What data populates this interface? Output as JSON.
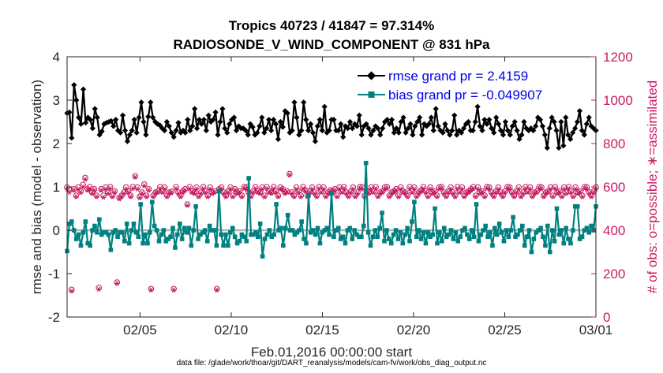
{
  "chart_data": {
    "type": "line",
    "title": "Tropics 40723 / 41847 = 97.314%",
    "subtitle": "RADIOSONDE_V_WIND_COMPONENT @ 831 hPa",
    "xlabel": "Feb.01,2016 00:00:00 start",
    "ylabel": "rmse and bias (model - observation)",
    "ylabel_right": "# of obs: o=possible; ∗=assimilated",
    "footnote": "data file: /glade/work/thoar/git/DART_reanalysis/models/cam-fv/work/obs_diag_output.nc",
    "xlim": [
      1,
      30
    ],
    "ylim": [
      -2,
      4
    ],
    "ylim_right": [
      0,
      1200
    ],
    "x_ticks": [
      {
        "value": 5,
        "label": "02/05"
      },
      {
        "value": 10,
        "label": "02/10"
      },
      {
        "value": 15,
        "label": "02/15"
      },
      {
        "value": 20,
        "label": "02/20"
      },
      {
        "value": 25,
        "label": "02/25"
      },
      {
        "value": 30,
        "label": "03/01"
      }
    ],
    "y_ticks": [
      "-2",
      "-1",
      "0",
      "1",
      "2",
      "3",
      "4"
    ],
    "y_ticks_right": [
      "0",
      "200",
      "400",
      "600",
      "800",
      "1000",
      "1200"
    ],
    "grid": false,
    "legend_position": "top-right",
    "colors": {
      "rmse": "#000000",
      "bias": "#008080",
      "obs": "#c2185b",
      "zero_line": "#b3b3b3",
      "right_axis": "#cc1a66",
      "legend_text": "#0000ee"
    },
    "series": [
      {
        "name": "rmse grand pr = 2.4159",
        "color": "#000000",
        "marker": "diamond",
        "values": [
          2.7,
          2.72,
          2.13,
          3.35,
          3.0,
          2.6,
          2.45,
          3.25,
          2.48,
          2.6,
          2.55,
          2.35,
          2.8,
          2.6,
          2.2,
          2.28,
          2.45,
          2.48,
          2.5,
          2.52,
          2.4,
          2.55,
          2.3,
          2.25,
          2.65,
          2.3,
          2.05,
          2.2,
          2.3,
          2.55,
          2.25,
          2.6,
          2.95,
          2.5,
          2.2,
          2.62,
          2.95,
          2.6,
          2.5,
          2.45,
          2.42,
          2.35,
          2.3,
          2.5,
          2.4,
          2.25,
          2.15,
          2.3,
          2.48,
          2.25,
          2.3,
          2.25,
          2.55,
          2.3,
          2.4,
          2.8,
          2.35,
          2.55,
          2.45,
          2.55,
          2.3,
          2.65,
          2.5,
          2.55,
          2.72,
          2.2,
          2.5,
          2.8,
          2.35,
          2.25,
          2.45,
          2.55,
          2.6,
          2.3,
          2.4,
          2.35,
          2.35,
          2.3,
          2.2,
          2.45,
          2.38,
          2.2,
          2.25,
          2.4,
          2.6,
          2.25,
          2.35,
          2.55,
          2.3,
          2.55,
          2.45,
          2.1,
          2.5,
          2.38,
          2.75,
          2.7,
          2.25,
          2.3,
          2.95,
          2.6,
          2.2,
          2.3,
          2.95,
          2.55,
          2.3,
          2.45,
          2.25,
          2.05,
          2.4,
          2.55,
          2.3,
          2.85,
          2.25,
          2.3,
          2.55,
          2.55,
          2.3,
          2.3,
          2.45,
          2.15,
          2.4,
          2.35,
          2.5,
          2.35,
          2.45,
          2.4,
          2.65,
          2.2,
          2.4,
          2.45,
          2.35,
          2.2,
          2.3,
          2.4,
          2.35,
          2.2,
          2.35,
          2.5,
          2.55,
          2.45,
          2.55,
          2.25,
          2.35,
          2.25,
          2.5,
          2.6,
          2.25,
          2.35,
          2.45,
          2.2,
          2.4,
          2.5,
          2.6,
          2.2,
          2.45,
          2.4,
          2.45,
          2.6,
          2.3,
          2.8,
          2.4,
          2.3,
          2.25,
          2.45,
          2.3,
          2.2,
          2.3,
          2.65,
          2.2,
          2.3,
          2.25,
          2.35,
          2.45,
          2.5,
          2.3,
          2.3,
          2.5,
          2.85,
          2.4,
          2.3,
          2.55,
          2.45,
          2.55,
          2.35,
          2.25,
          2.6,
          2.45,
          2.3,
          2.2,
          2.5,
          2.3,
          2.2,
          2.4,
          2.5,
          2.3,
          2.1,
          2.2,
          2.5,
          2.35,
          2.3,
          2.35,
          2.3,
          2.4,
          2.6,
          2.55,
          2.4,
          2.2,
          1.9,
          2.35,
          2.6,
          2.5,
          2.3,
          1.9,
          2.5,
          1.95,
          2.6,
          2.2,
          2.1,
          2.25,
          2.35,
          2.5,
          2.75,
          2.3,
          2.2,
          2.45,
          2.6,
          2.4,
          2.35,
          2.3
        ]
      },
      {
        "name": "bias grand pr = -0.049907",
        "color": "#008080",
        "marker": "square",
        "values": [
          -0.48,
          0.15,
          0.2,
          0.0,
          -0.2,
          -0.1,
          -0.35,
          -0.05,
          0.2,
          -0.3,
          -0.35,
          0.0,
          0.1,
          -0.05,
          0.25,
          -0.1,
          -0.05,
          -0.05,
          -0.1,
          -0.45,
          -0.05,
          0.0,
          -0.15,
          -0.05,
          -0.05,
          -0.25,
          0.15,
          -0.3,
          0.0,
          0.15,
          -0.05,
          -0.15,
          0.6,
          -0.3,
          -0.1,
          -0.3,
          -0.05,
          0.65,
          0.1,
          0.0,
          -0.25,
          -0.1,
          0.0,
          -0.25,
          -0.2,
          -0.15,
          0.05,
          -0.4,
          -0.1,
          0.15,
          -0.2,
          0.05,
          -0.05,
          0.05,
          -0.35,
          0.0,
          0.55,
          -0.2,
          -0.1,
          -0.05,
          0.0,
          -0.25,
          0.1,
          0.0,
          0.0,
          -0.35,
          0.9,
          -0.1,
          -0.35,
          -0.1,
          -0.35,
          -0.05,
          0.05,
          -0.15,
          -0.3,
          -0.25,
          -0.1,
          -0.15,
          -0.25,
          1.2,
          -0.1,
          -0.1,
          -0.05,
          -0.15,
          0.15,
          -0.6,
          -0.2,
          -0.1,
          0.0,
          -0.15,
          -0.1,
          0.6,
          0.0,
          0.05,
          -0.35,
          0.05,
          0.35,
          0.0,
          0.0,
          -0.1,
          -0.05,
          0.0,
          0.2,
          -0.2,
          -0.3,
          0.8,
          -0.05,
          0.0,
          -0.1,
          0.05,
          -0.3,
          -0.05,
          0.0,
          0.05,
          -0.1,
          0.85,
          -0.15,
          0.0,
          0.05,
          -0.2,
          -0.15,
          -0.3,
          0.0,
          0.05,
          -0.2,
          0.0,
          -0.1,
          -0.15,
          -0.15,
          0.1,
          1.55,
          -0.05,
          -0.35,
          -0.15,
          0.0,
          -0.15,
          0.05,
          0.4,
          -0.25,
          0.0,
          -0.2,
          -0.3,
          -0.1,
          0.0,
          -0.2,
          -0.05,
          -0.3,
          -0.1,
          0.05,
          -0.25,
          0.2,
          0.65,
          -0.15,
          0.0,
          -0.2,
          -0.05,
          -0.3,
          -0.05,
          -0.15,
          -0.1,
          0.5,
          -0.3,
          -0.05,
          -0.25,
          0.05,
          -0.15,
          -0.1,
          0.0,
          -0.2,
          -0.05,
          -0.25,
          -0.15,
          0.0,
          0.05,
          -0.1,
          -0.2,
          0.0,
          -0.15,
          0.6,
          -0.25,
          -0.1,
          0.0,
          0.1,
          -0.15,
          -0.05,
          -0.35,
          0.05,
          -0.1,
          0.15,
          -0.05,
          -0.25,
          0.0,
          -0.15,
          0.0,
          0.3,
          -0.15,
          -0.1,
          0.0,
          0.1,
          -0.35,
          -0.15,
          0.0,
          -0.5,
          -0.2,
          -0.05,
          0.0,
          0.05,
          -0.15,
          -0.35,
          0.1,
          -0.5,
          0.0,
          -0.25,
          0.5,
          -0.1,
          0.0,
          -0.3,
          0.05,
          -0.2,
          -0.3,
          0.0,
          0.55,
          0.55,
          -0.2,
          -0.15,
          0.0,
          0.05,
          -0.05,
          0.1,
          0.0,
          0.55
        ]
      }
    ],
    "obs_possible": [
      598,
      588,
      126,
      590,
      560,
      598,
      580,
      610,
      642,
      590,
      600,
      575,
      590,
      560,
      135,
      590,
      560,
      598,
      575,
      600,
      560,
      580,
      160,
      550,
      560,
      575,
      598,
      580,
      560,
      600,
      650,
      598,
      555,
      575,
      612,
      560,
      590,
      130,
      560,
      575,
      580,
      600,
      580,
      598,
      560,
      575,
      578,
      130,
      600,
      575,
      560,
      580,
      590,
      520,
      600,
      580,
      575,
      598,
      560,
      575,
      600,
      580,
      560,
      598,
      575,
      580,
      130,
      590,
      598,
      575,
      560,
      580,
      598,
      560,
      590,
      575,
      580,
      560,
      600,
      598,
      575,
      560,
      580,
      600,
      580,
      575,
      598,
      560,
      600,
      580,
      575,
      600,
      580,
      560,
      598,
      590,
      575,
      580,
      660,
      575,
      560,
      598,
      580,
      560,
      600,
      585,
      560,
      580,
      598,
      575,
      560,
      600,
      580,
      598,
      560,
      575,
      585,
      580,
      590,
      560,
      598,
      580,
      600,
      575,
      560,
      580,
      598,
      560,
      575,
      600,
      598,
      560,
      580,
      575,
      598,
      580,
      600,
      560,
      575,
      580,
      598,
      600,
      560,
      575,
      580,
      590,
      560,
      598,
      580,
      575,
      560,
      600,
      580,
      598,
      560,
      575,
      585,
      600,
      580,
      560,
      598,
      575,
      580,
      560,
      598,
      600,
      575,
      560,
      580,
      598,
      575,
      560,
      600,
      580,
      598,
      560,
      575,
      580,
      590,
      600,
      560,
      598,
      575,
      580,
      560,
      600,
      598,
      575,
      560,
      580,
      598,
      575,
      560,
      580,
      600,
      598,
      575,
      560,
      580,
      598,
      560,
      575,
      600,
      580,
      598,
      560,
      575,
      580,
      600,
      598,
      560,
      575,
      580,
      598,
      560,
      600,
      575,
      580,
      560,
      598,
      575,
      600,
      580,
      560,
      598,
      575,
      580,
      560,
      600,
      598,
      575,
      560,
      580,
      598
    ],
    "obs_assimilated": [
      590,
      575,
      120,
      585,
      555,
      590,
      575,
      600,
      635,
      585,
      592,
      570,
      585,
      555,
      128,
      585,
      552,
      590,
      570,
      592,
      555,
      575,
      155,
      545,
      555,
      570,
      590,
      575,
      555,
      592,
      645,
      590,
      550,
      570,
      605,
      555,
      585,
      125,
      555,
      570,
      575,
      592,
      575,
      590,
      555,
      570,
      572,
      125,
      592,
      570,
      555,
      575,
      585,
      515,
      592,
      575,
      570,
      590,
      555,
      570,
      592,
      575,
      555,
      590,
      570,
      575,
      125,
      585,
      590,
      570,
      555,
      575,
      590,
      555,
      585,
      570,
      575,
      555,
      592,
      590,
      570,
      555,
      575,
      592,
      575,
      570,
      590,
      555,
      592,
      575,
      570,
      592,
      575,
      555,
      590,
      585,
      570,
      575,
      655,
      570,
      555,
      590,
      575,
      555,
      592,
      580,
      555,
      575,
      590,
      570,
      555,
      592,
      575,
      590,
      555,
      570,
      580,
      575,
      585,
      555,
      590,
      575,
      592,
      570,
      555,
      575,
      590,
      555,
      570,
      592,
      590,
      555,
      575,
      570,
      590,
      575,
      592,
      555,
      570,
      575,
      590,
      592,
      555,
      570,
      575,
      585,
      555,
      590,
      575,
      570,
      555,
      592,
      575,
      590,
      555,
      570,
      580,
      592,
      575,
      555,
      590,
      570,
      575,
      555,
      590,
      592,
      570,
      555,
      575,
      590,
      570,
      555,
      592,
      575,
      590,
      555,
      570,
      575,
      585,
      592,
      555,
      590,
      570,
      575,
      555,
      592,
      590,
      570,
      555,
      575,
      590,
      570,
      555,
      575,
      592,
      590,
      570,
      555,
      575,
      590,
      555,
      570,
      592,
      575,
      590,
      555,
      570,
      575,
      592,
      590,
      555,
      570,
      575,
      590,
      555,
      592,
      570,
      575,
      555,
      590,
      570,
      592,
      575,
      555,
      590,
      570,
      575,
      555,
      592,
      590,
      570,
      555,
      575,
      590
    ]
  }
}
